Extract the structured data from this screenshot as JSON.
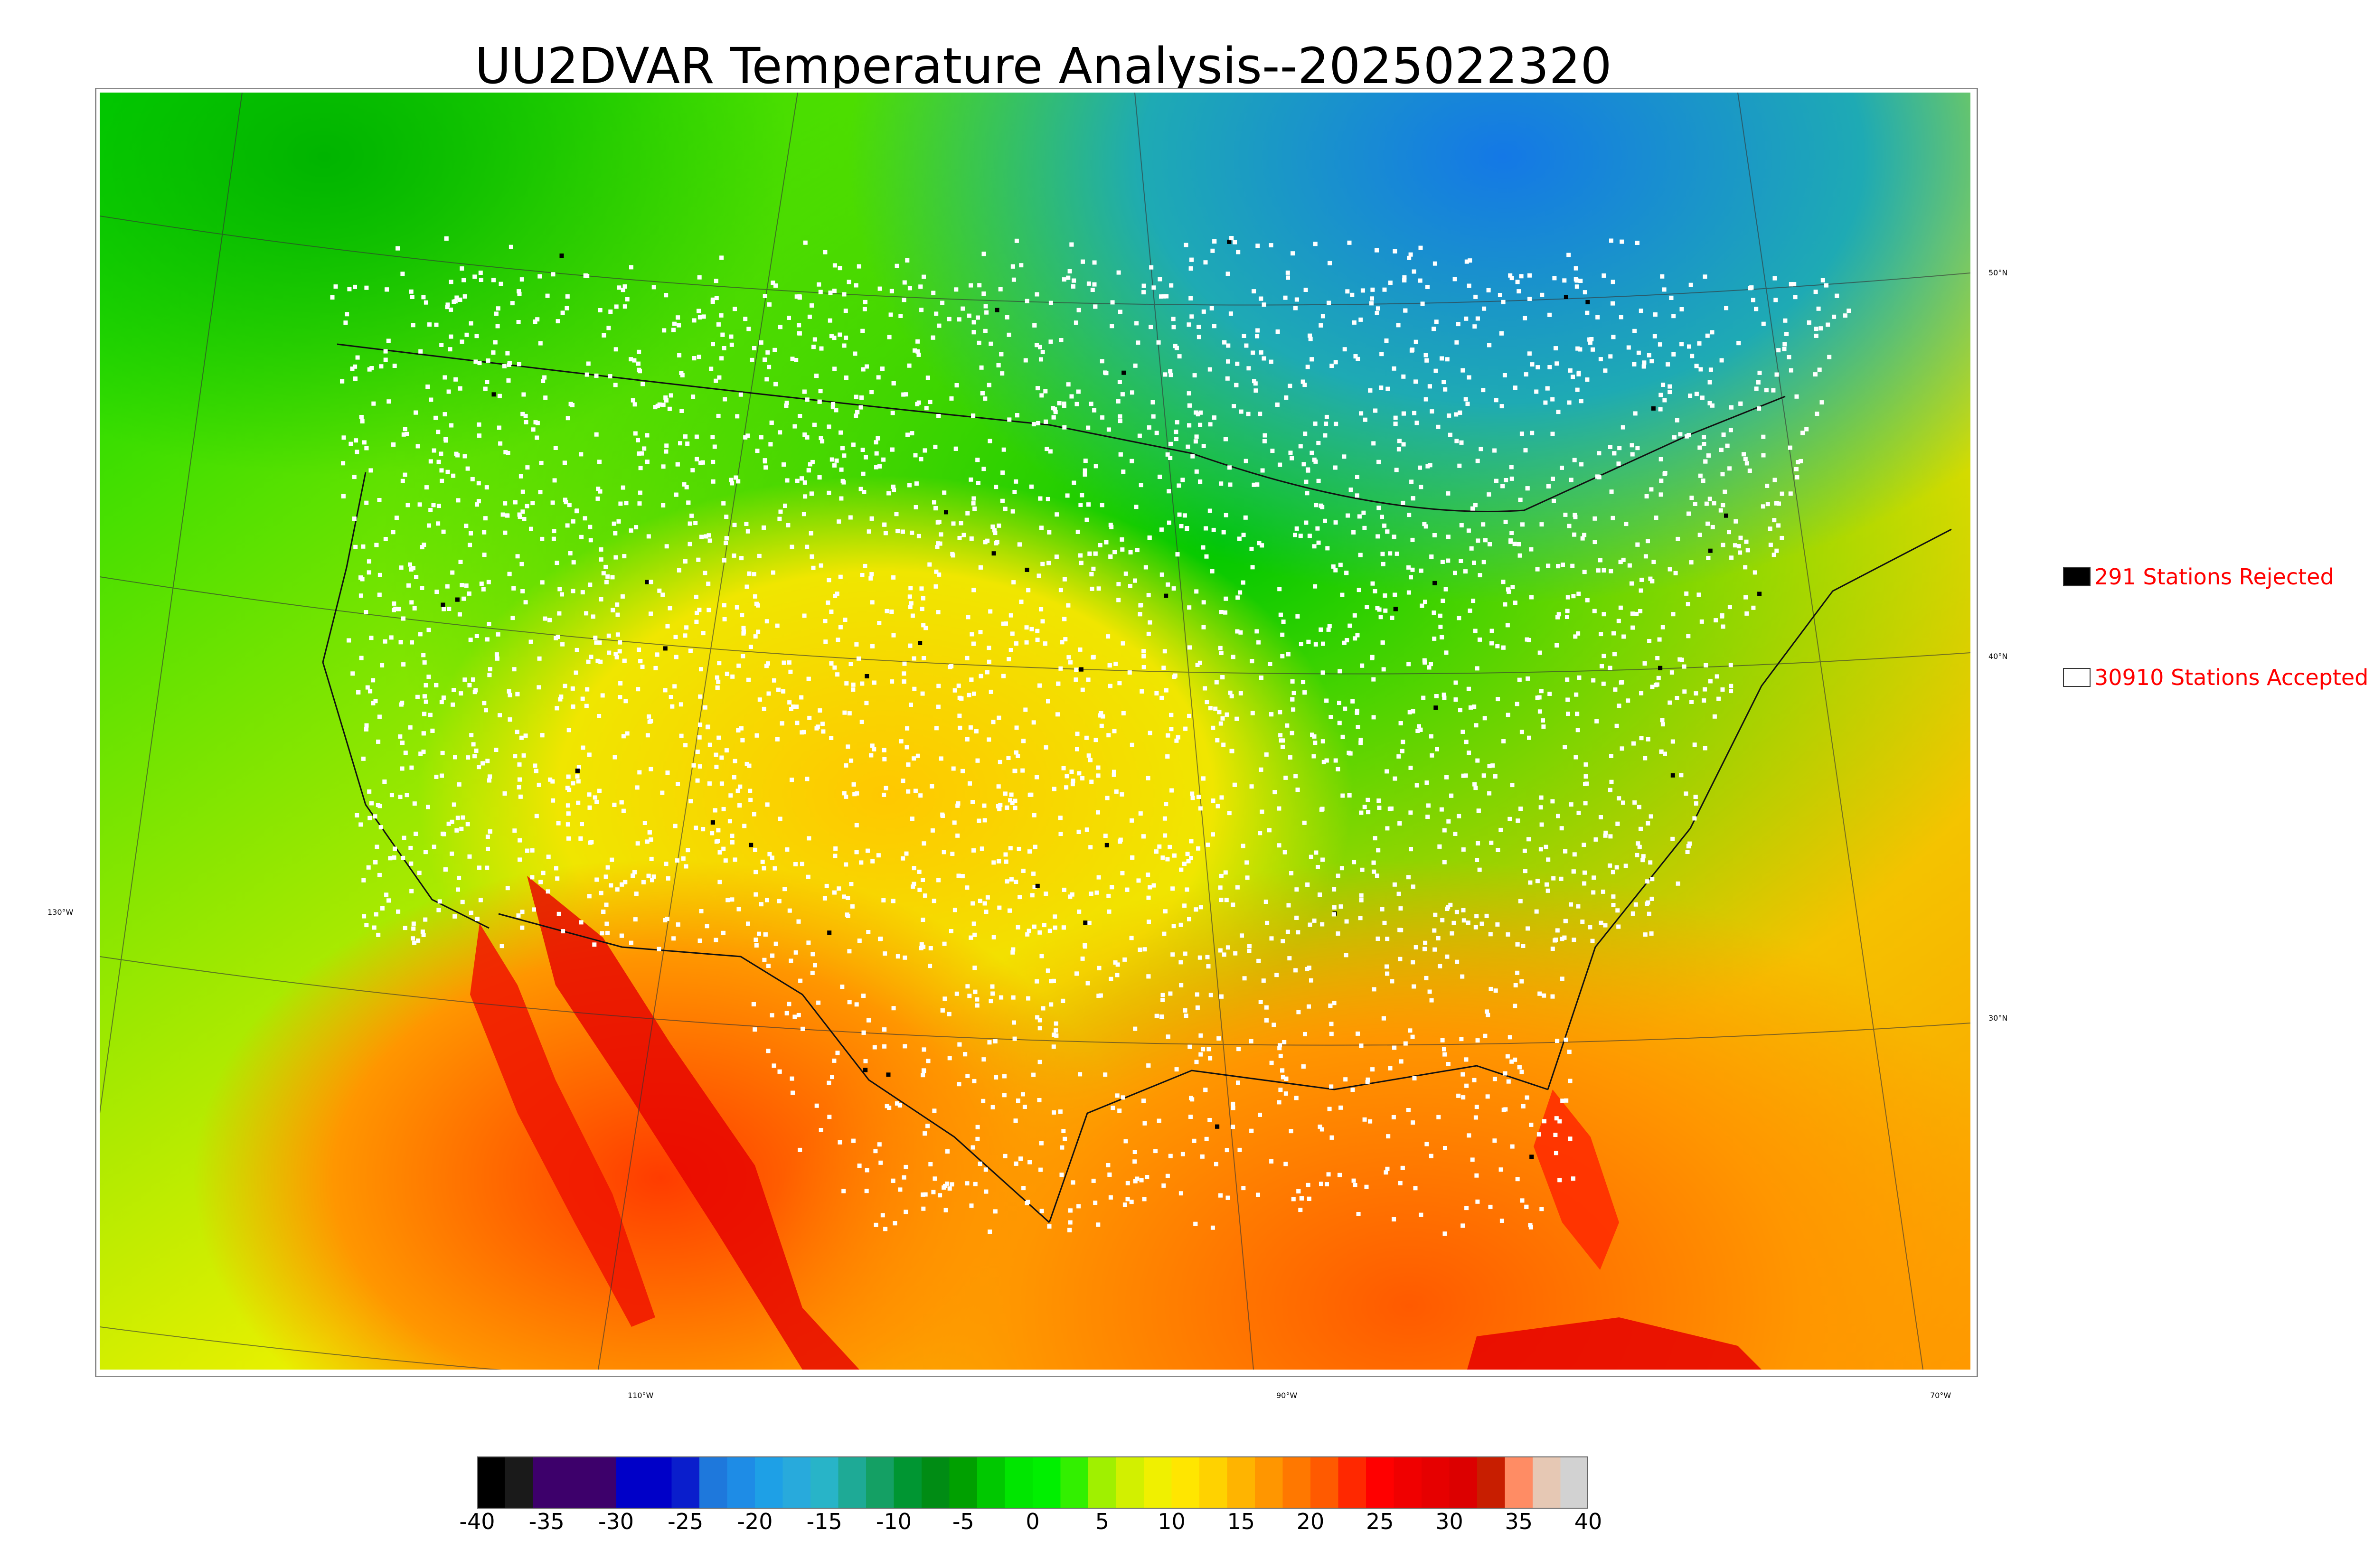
{
  "title": "UU2DVAR Temperature Analysis--2025022320",
  "map": {
    "lat_labels": [
      "50°N",
      "40°N",
      "30°N"
    ],
    "lon_labels": [
      "130°W",
      "110°W",
      "90°W",
      "70°W"
    ]
  },
  "legend": {
    "rejected": {
      "label": "291 Stations Rejected",
      "count": 291,
      "color": "#000000"
    },
    "accepted": {
      "label": "30910 Stations Accepted",
      "count": 30910,
      "color": "#ffffff"
    }
  },
  "colorbar": {
    "ticks": [
      "-40",
      "-35",
      "-30",
      "-25",
      "-20",
      "-15",
      "-10",
      "-5",
      "0",
      "5",
      "10",
      "15",
      "20",
      "25",
      "30",
      "35",
      "40"
    ],
    "range": [
      -40,
      40
    ],
    "colors": [
      "#000000",
      "#1a1a1a",
      "#3d006b",
      "#3d006b",
      "#3d006b",
      "#0000c8",
      "#0000c8",
      "#0a1ecc",
      "#1e78dc",
      "#1e8ce6",
      "#1ea0e6",
      "#28aadc",
      "#28b4c8",
      "#1eaa96",
      "#14a064",
      "#009632",
      "#008c14",
      "#00a000",
      "#00c800",
      "#00e600",
      "#00f000",
      "#32f000",
      "#a0f000",
      "#d2f000",
      "#f0f000",
      "#ffe600",
      "#ffd200",
      "#ffb400",
      "#ff9600",
      "#ff7800",
      "#ff5a00",
      "#ff2800",
      "#ff0000",
      "#f00000",
      "#e60000",
      "#dc0000",
      "#c81e00",
      "#ff8c64",
      "#e6c8b4",
      "#d2d2d2"
    ]
  }
}
